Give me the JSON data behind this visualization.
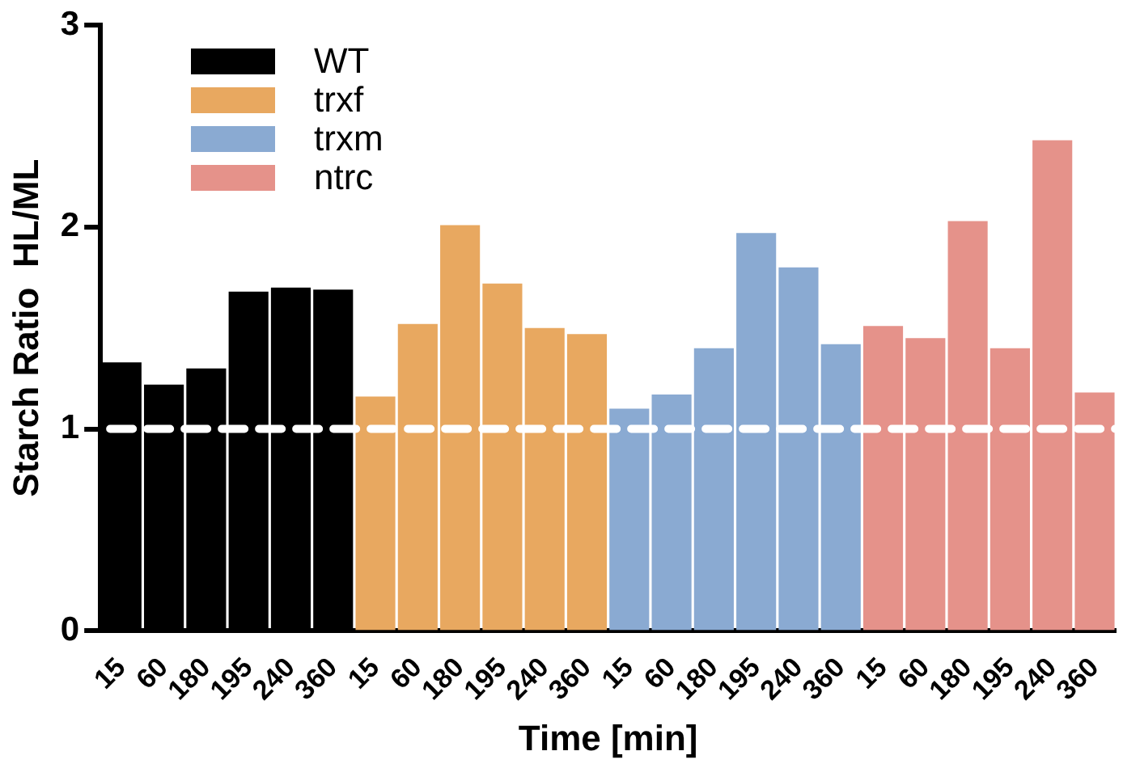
{
  "chart_data": {
    "type": "bar",
    "xlabel": "Time [min]",
    "ylabel": "Starch Ratio  HL/ML",
    "categories": [
      "15",
      "60",
      "180",
      "195",
      "240",
      "360",
      "15",
      "60",
      "180",
      "195",
      "240",
      "360",
      "15",
      "60",
      "180",
      "195",
      "240",
      "360",
      "15",
      "60",
      "180",
      "195",
      "240",
      "360"
    ],
    "series": [
      {
        "name": "WT",
        "color": "#000000",
        "values": [
          1.33,
          1.22,
          1.3,
          1.68,
          1.7,
          1.69,
          null,
          null,
          null,
          null,
          null,
          null,
          null,
          null,
          null,
          null,
          null,
          null,
          null,
          null,
          null,
          null,
          null,
          null
        ]
      },
      {
        "name": "trxf",
        "color": "#e8a860",
        "values": [
          null,
          null,
          null,
          null,
          null,
          null,
          1.16,
          1.52,
          2.01,
          1.72,
          1.5,
          1.47,
          null,
          null,
          null,
          null,
          null,
          null,
          null,
          null,
          null,
          null,
          null,
          null
        ]
      },
      {
        "name": "trxm",
        "color": "#8aaad2",
        "values": [
          null,
          null,
          null,
          null,
          null,
          null,
          null,
          null,
          null,
          null,
          null,
          null,
          1.1,
          1.17,
          1.4,
          1.97,
          1.8,
          1.42,
          null,
          null,
          null,
          null,
          null,
          null
        ]
      },
      {
        "name": "ntrc",
        "color": "#e5928a",
        "values": [
          null,
          null,
          null,
          null,
          null,
          null,
          null,
          null,
          null,
          null,
          null,
          null,
          null,
          null,
          null,
          null,
          null,
          null,
          1.51,
          1.45,
          2.03,
          1.4,
          2.43,
          1.18
        ]
      }
    ],
    "ylim": [
      0,
      3
    ],
    "yticks": [
      0,
      1,
      2,
      3
    ],
    "grid": false,
    "legend": "top left",
    "ref_lines": [
      {
        "axis": "y",
        "value": 1,
        "color": "#ffffff",
        "line_style": "dashed"
      }
    ]
  }
}
